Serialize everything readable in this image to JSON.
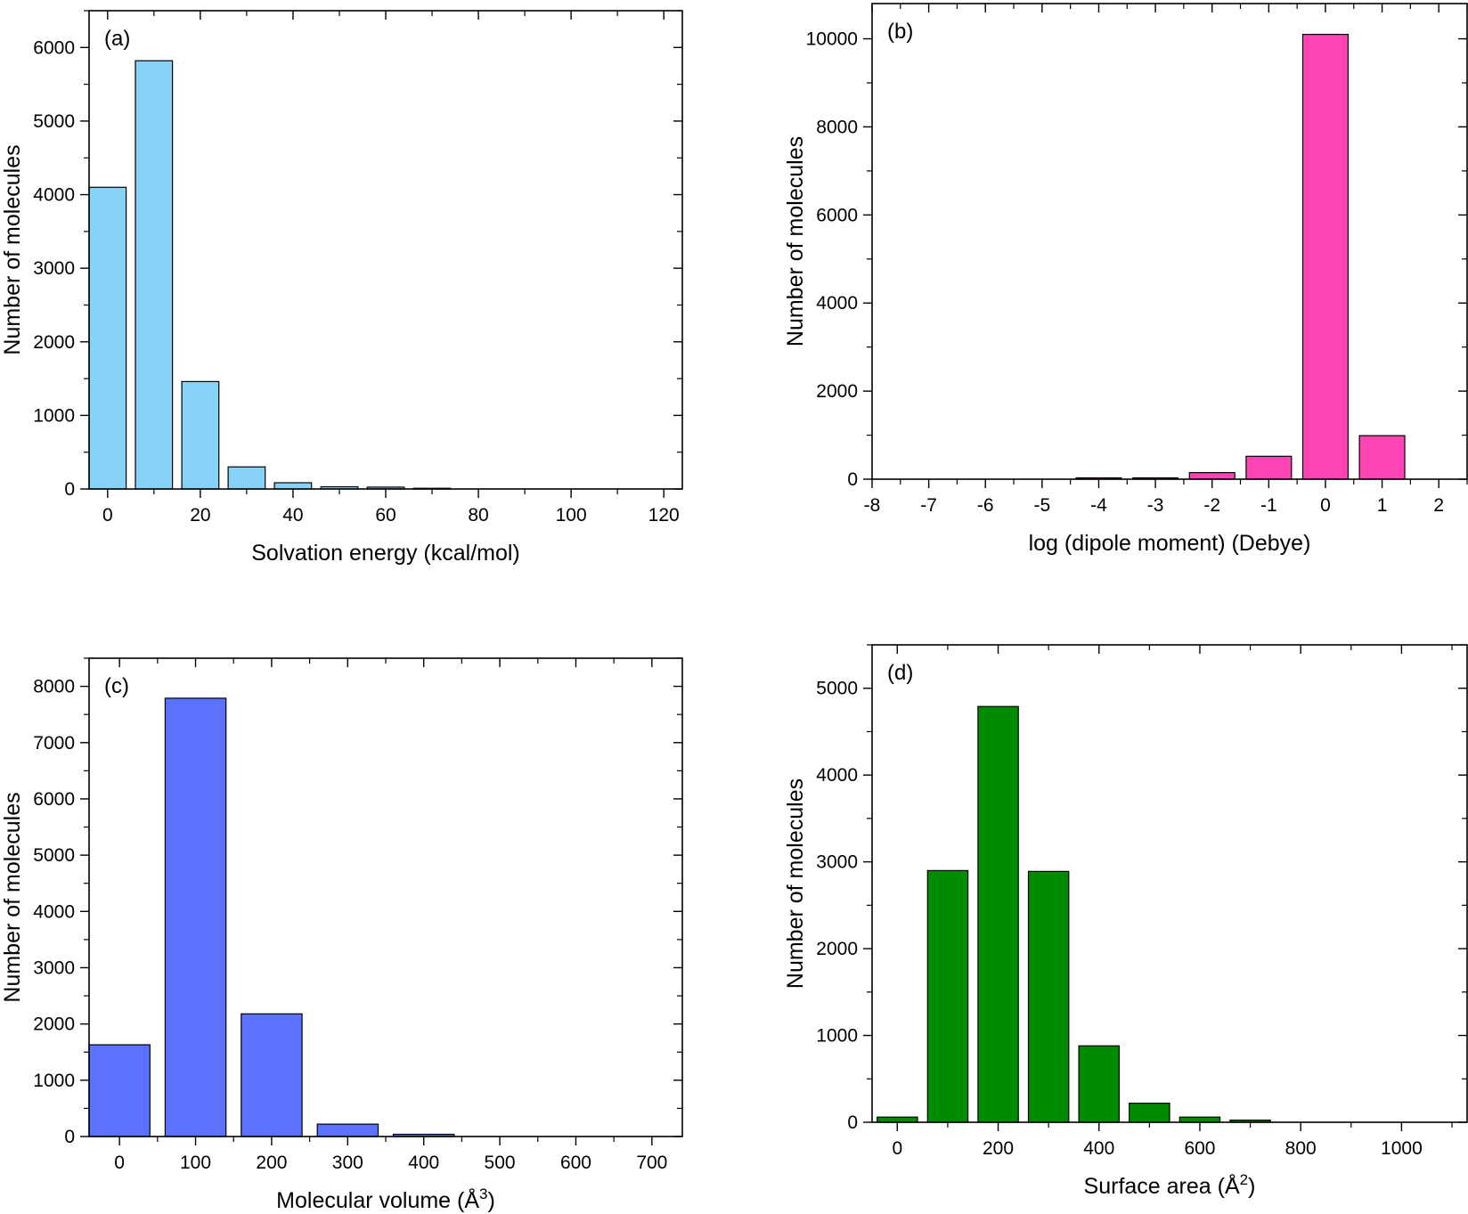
{
  "chart_data": [
    {
      "id": "a",
      "type": "bar",
      "panel_label": "(a)",
      "xlabel": "Solvation energy (kcal/mol)",
      "ylabel": "Number of molecules",
      "xlim": [
        -4,
        124
      ],
      "ylim": [
        0,
        6500
      ],
      "xticks": [
        0,
        20,
        40,
        60,
        80,
        100,
        120
      ],
      "yticks": [
        0,
        1000,
        2000,
        3000,
        4000,
        5000,
        6000
      ],
      "bar_width": 8,
      "color": "#87d3f8",
      "x": [
        0,
        10,
        20,
        30,
        40,
        50,
        60,
        70
      ],
      "values": [
        4100,
        5820,
        1460,
        300,
        85,
        30,
        25,
        10
      ]
    },
    {
      "id": "b",
      "type": "bar",
      "panel_label": "(b)",
      "xlabel": "log (dipole moment) (Debye)",
      "ylabel": "Number of molecules",
      "xlim": [
        -8,
        2.5
      ],
      "ylim": [
        0,
        10800
      ],
      "xticks": [
        -8,
        -7,
        -6,
        -5,
        -4,
        -3,
        -2,
        -1,
        0,
        1,
        2
      ],
      "yticks": [
        0,
        2000,
        4000,
        6000,
        8000,
        10000
      ],
      "bar_width": 0.8,
      "color": "#ff44b4",
      "x": [
        -4,
        -3,
        -2,
        -1,
        0,
        1
      ],
      "values": [
        30,
        30,
        150,
        520,
        10100,
        990
      ]
    },
    {
      "id": "c",
      "type": "bar",
      "panel_label": "(c)",
      "xlabel": "Molecular volume (Å",
      "xlabel_sup": "3",
      "xlabel_end": ")",
      "ylabel": "Number of molecules",
      "xlim": [
        -40,
        740
      ],
      "ylim": [
        0,
        8500
      ],
      "xticks": [
        0,
        100,
        200,
        300,
        400,
        500,
        600,
        700
      ],
      "yticks": [
        0,
        1000,
        2000,
        3000,
        4000,
        5000,
        6000,
        7000,
        8000
      ],
      "bar_width": 80,
      "color": "#5b72ff",
      "x": [
        0,
        100,
        200,
        300,
        400
      ],
      "values": [
        1630,
        7790,
        2180,
        220,
        40
      ]
    },
    {
      "id": "d",
      "type": "bar",
      "panel_label": "(d)",
      "xlabel": "Surface area (Å",
      "xlabel_sup": "2",
      "xlabel_end": ")",
      "ylabel": "Number of molecules",
      "xlim": [
        -50,
        1130
      ],
      "ylim": [
        0,
        5500
      ],
      "xticks": [
        0,
        200,
        400,
        600,
        800,
        1000
      ],
      "yticks": [
        0,
        1000,
        2000,
        3000,
        4000,
        5000
      ],
      "bar_width": 80,
      "color": "#008c00",
      "x": [
        0,
        100,
        200,
        300,
        400,
        500,
        600,
        700
      ],
      "values": [
        60,
        2900,
        4790,
        2890,
        880,
        220,
        60,
        25
      ]
    }
  ]
}
